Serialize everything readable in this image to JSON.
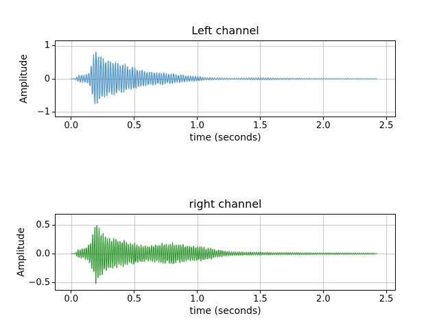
{
  "figure": {
    "background": "#ffffff",
    "text_color": "#000000",
    "grid_color": "#b0b0b0"
  },
  "chart_data": [
    {
      "type": "line",
      "title": "Left channel",
      "xlabel": "time (seconds)",
      "ylabel": "Amplitude",
      "line_color": "#1f77b4",
      "grid": true,
      "xlim": [
        -0.124,
        2.57
      ],
      "ylim": [
        -1.14,
        1.14
      ],
      "xtick_values": [
        0.0,
        0.5,
        1.0,
        1.5,
        2.0,
        2.5
      ],
      "xtick_labels": [
        "0.0",
        "0.5",
        "1.0",
        "1.5",
        "2.0",
        "2.5"
      ],
      "ytick_values": [
        -1,
        0,
        1
      ],
      "ytick_labels": [
        "−1",
        "0",
        "1"
      ],
      "waveform": {
        "description": "audio waveform envelope, decaying pluck starting near t=0.05 s, peak ~0.97 at t=0.19 s, long thin tail to t=2.43 s",
        "duration": 2.43,
        "carrier_hz": 52,
        "samples_per_cycle": 5.3,
        "neg_scale": 0.92,
        "envelope_t": [
          0.0,
          0.02,
          0.04,
          0.06,
          0.08,
          0.1,
          0.13,
          0.15,
          0.17,
          0.19,
          0.22,
          0.26,
          0.3,
          0.35,
          0.4,
          0.45,
          0.5,
          0.55,
          0.6,
          0.7,
          0.8,
          0.9,
          1.0,
          1.05,
          1.1,
          1.2,
          1.3,
          1.45,
          1.55,
          1.65,
          1.8,
          2.0,
          2.2,
          2.4,
          2.43
        ],
        "envelope_a": [
          0.0,
          0.01,
          0.05,
          0.13,
          0.16,
          0.12,
          0.15,
          0.3,
          0.7,
          0.97,
          0.88,
          0.78,
          0.68,
          0.58,
          0.5,
          0.42,
          0.37,
          0.32,
          0.28,
          0.22,
          0.17,
          0.13,
          0.1,
          0.055,
          0.045,
          0.035,
          0.03,
          0.04,
          0.045,
          0.035,
          0.025,
          0.02,
          0.018,
          0.015,
          0.0
        ]
      }
    },
    {
      "type": "line",
      "title": "right channel",
      "xlabel": "time (seconds)",
      "ylabel": "Amplitude",
      "line_color": "#008000",
      "grid": true,
      "xlim": [
        -0.124,
        2.57
      ],
      "ylim": [
        -0.63,
        0.68
      ],
      "xtick_values": [
        0.0,
        0.5,
        1.0,
        1.5,
        2.0,
        2.5
      ],
      "xtick_labels": [
        "0.0",
        "0.5",
        "1.0",
        "1.5",
        "2.0",
        "2.5"
      ],
      "ytick_values": [
        -0.5,
        0.0,
        0.5
      ],
      "ytick_labels": [
        "−0.5",
        "0.0",
        "0.5"
      ],
      "waveform": {
        "description": "audio waveform envelope, peak ~0.62 at t=0.20 s, secondary bump ~0.20 around t=0.8 s, thin tail to t=2.43 s",
        "duration": 2.43,
        "carrier_hz": 60,
        "samples_per_cycle": 4.6,
        "neg_scale": 0.97,
        "envelope_t": [
          0.0,
          0.03,
          0.05,
          0.08,
          0.1,
          0.13,
          0.16,
          0.18,
          0.2,
          0.23,
          0.27,
          0.32,
          0.38,
          0.45,
          0.5,
          0.6,
          0.7,
          0.8,
          0.9,
          1.0,
          1.08,
          1.15,
          1.25,
          1.4,
          1.6,
          1.8,
          2.0,
          2.2,
          2.4,
          2.43
        ],
        "envelope_a": [
          0.0,
          0.01,
          0.07,
          0.11,
          0.09,
          0.13,
          0.3,
          0.45,
          0.62,
          0.52,
          0.4,
          0.32,
          0.27,
          0.22,
          0.2,
          0.17,
          0.19,
          0.2,
          0.18,
          0.16,
          0.12,
          0.08,
          0.05,
          0.035,
          0.03,
          0.025,
          0.022,
          0.02,
          0.018,
          0.0
        ]
      }
    }
  ]
}
